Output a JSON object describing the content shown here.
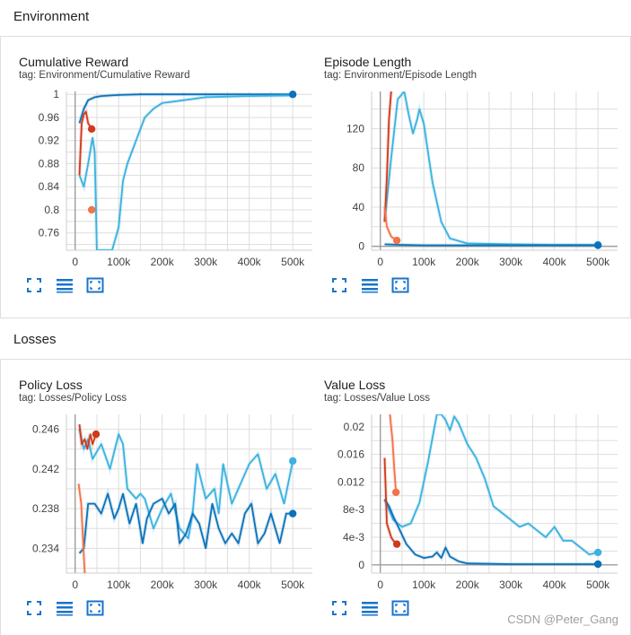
{
  "sections": [
    {
      "title": "Environment"
    },
    {
      "title": "Losses"
    }
  ],
  "colors": {
    "dark_blue": "#0b72b9",
    "light_blue": "#3bb2e0",
    "red": "#cf3b1e",
    "orange": "#f2734a",
    "grid": "#dddddd",
    "axis": "#9e9e9e"
  },
  "watermark": "CSDN @Peter_Gang",
  "chart_data": [
    {
      "id": "cumulative-reward",
      "type": "line",
      "title": "Cumulative Reward",
      "tag": "tag: Environment/Cumulative Reward",
      "xlim": [
        -20000,
        545000
      ],
      "ylim": [
        0.73,
        1.005
      ],
      "xticks": [
        0,
        100000,
        200000,
        300000,
        400000,
        500000
      ],
      "xtick_labels": [
        "0",
        "100k",
        "200k",
        "300k",
        "400k",
        "500k"
      ],
      "yticks": [
        0.76,
        0.8,
        0.84,
        0.88,
        0.92,
        0.96,
        1
      ],
      "ytick_labels": [
        "0.76",
        "0.8",
        "0.84",
        "0.88",
        "0.92",
        "0.96",
        "1"
      ],
      "series": [
        {
          "name": "run-dark-blue",
          "color": "#0b72b9",
          "marker": true,
          "x": [
            10000,
            20000,
            30000,
            45000,
            60000,
            100000,
            150000,
            200000,
            300000,
            400000,
            500000
          ],
          "y": [
            0.95,
            0.975,
            0.99,
            0.995,
            0.997,
            0.999,
            1,
            1,
            1,
            1,
            1
          ]
        },
        {
          "name": "run-light-blue",
          "color": "#3bb2e0",
          "marker": false,
          "x": [
            10000,
            20000,
            30000,
            40000,
            45000,
            50000,
            85000,
            100000,
            110000,
            120000,
            140000,
            160000,
            180000,
            200000,
            250000,
            300000,
            400000,
            500000
          ],
          "y": [
            0.86,
            0.84,
            0.88,
            0.925,
            0.9,
            0.73,
            0.73,
            0.77,
            0.85,
            0.88,
            0.92,
            0.96,
            0.975,
            0.985,
            0.99,
            0.995,
            0.997,
            0.998
          ]
        },
        {
          "name": "run-red",
          "color": "#cf3b1e",
          "marker": true,
          "x": [
            10000,
            15000,
            20000,
            25000,
            30000,
            38000
          ],
          "y": [
            0.86,
            0.95,
            0.965,
            0.97,
            0.95,
            0.94
          ]
        },
        {
          "name": "run-orange",
          "color": "#f2734a",
          "marker": true,
          "x": [
            32000,
            38000
          ],
          "y": [
            0.8,
            0.8
          ]
        }
      ]
    },
    {
      "id": "episode-length",
      "type": "line",
      "title": "Episode Length",
      "tag": "tag: Environment/Episode Length",
      "xlim": [
        -20000,
        545000
      ],
      "ylim": [
        -4,
        158
      ],
      "xticks": [
        0,
        100000,
        200000,
        300000,
        400000,
        500000
      ],
      "xtick_labels": [
        "0",
        "100k",
        "200k",
        "300k",
        "400k",
        "500k"
      ],
      "yticks": [
        0,
        40,
        80,
        120
      ],
      "ytick_labels": [
        "0",
        "40",
        "80",
        "120"
      ],
      "series": [
        {
          "name": "run-light-blue",
          "color": "#3bb2e0",
          "marker": true,
          "x": [
            10000,
            25000,
            40000,
            55000,
            65000,
            75000,
            85000,
            90000,
            100000,
            110000,
            120000,
            140000,
            160000,
            200000,
            300000,
            400000,
            500000
          ],
          "y": [
            25,
            90,
            150,
            158,
            135,
            115,
            130,
            140,
            125,
            95,
            65,
            25,
            8,
            3,
            2,
            1.5,
            1.5
          ]
        },
        {
          "name": "run-dark-blue",
          "color": "#0b72b9",
          "marker": true,
          "x": [
            10000,
            50000,
            100000,
            200000,
            300000,
            400000,
            500000
          ],
          "y": [
            2,
            1.5,
            1,
            1,
            1,
            1,
            1
          ]
        },
        {
          "name": "run-red",
          "color": "#cf3b1e",
          "marker": false,
          "x": [
            10000,
            15000,
            20000,
            25000
          ],
          "y": [
            25,
            70,
            130,
            158
          ]
        },
        {
          "name": "run-orange",
          "color": "#f2734a",
          "marker": true,
          "x": [
            10000,
            15000,
            25000,
            38000
          ],
          "y": [
            40,
            20,
            10,
            6
          ]
        }
      ]
    },
    {
      "id": "policy-loss",
      "type": "line",
      "title": "Policy Loss",
      "tag": "tag: Losses/Policy Loss",
      "xlim": [
        -20000,
        545000
      ],
      "ylim": [
        0.2315,
        0.2475
      ],
      "xticks": [
        0,
        100000,
        200000,
        300000,
        400000,
        500000
      ],
      "xtick_labels": [
        "0",
        "100k",
        "200k",
        "300k",
        "400k",
        "500k"
      ],
      "yticks": [
        0.234,
        0.238,
        0.242,
        0.246
      ],
      "ytick_labels": [
        "0.234",
        "0.238",
        "0.242",
        "0.246"
      ],
      "series": [
        {
          "name": "run-light-blue",
          "color": "#3bb2e0",
          "marker": true,
          "x": [
            10000,
            20000,
            30000,
            40000,
            60000,
            80000,
            100000,
            110000,
            120000,
            140000,
            150000,
            160000,
            180000,
            200000,
            220000,
            240000,
            260000,
            270000,
            280000,
            300000,
            320000,
            330000,
            340000,
            360000,
            380000,
            400000,
            420000,
            440000,
            460000,
            480000,
            500000
          ],
          "y": [
            0.246,
            0.244,
            0.245,
            0.243,
            0.2445,
            0.242,
            0.2455,
            0.2445,
            0.24,
            0.239,
            0.2395,
            0.239,
            0.236,
            0.238,
            0.2395,
            0.236,
            0.235,
            0.2375,
            0.2425,
            0.239,
            0.24,
            0.2375,
            0.2425,
            0.2385,
            0.2405,
            0.2425,
            0.2435,
            0.24,
            0.2415,
            0.2385,
            0.2428
          ]
        },
        {
          "name": "run-dark-blue",
          "color": "#0b72b9",
          "marker": true,
          "x": [
            10000,
            20000,
            30000,
            45000,
            60000,
            75000,
            90000,
            100000,
            110000,
            125000,
            140000,
            155000,
            165000,
            180000,
            200000,
            215000,
            230000,
            240000,
            255000,
            270000,
            285000,
            300000,
            315000,
            330000,
            345000,
            360000,
            375000,
            390000,
            405000,
            420000,
            435000,
            450000,
            470000,
            485000,
            500000
          ],
          "y": [
            0.2335,
            0.234,
            0.2385,
            0.2385,
            0.2375,
            0.2395,
            0.237,
            0.238,
            0.2395,
            0.2365,
            0.2385,
            0.2345,
            0.237,
            0.2385,
            0.239,
            0.2375,
            0.2385,
            0.2345,
            0.2355,
            0.2375,
            0.2365,
            0.234,
            0.2385,
            0.236,
            0.2345,
            0.2355,
            0.2345,
            0.2375,
            0.2385,
            0.2345,
            0.2355,
            0.2375,
            0.2345,
            0.2375,
            0.2375
          ]
        },
        {
          "name": "run-red",
          "color": "#cf3b1e",
          "marker": true,
          "x": [
            10000,
            15000,
            22000,
            28000,
            35000,
            40000,
            48000
          ],
          "y": [
            0.2465,
            0.2445,
            0.245,
            0.244,
            0.2455,
            0.2445,
            0.2455
          ]
        },
        {
          "name": "run-orange",
          "color": "#f2734a",
          "marker": false,
          "x": [
            8000,
            14000,
            18000,
            22000
          ],
          "y": [
            0.2405,
            0.2385,
            0.235,
            0.2315
          ]
        }
      ]
    },
    {
      "id": "value-loss",
      "type": "line",
      "title": "Value Loss",
      "tag": "tag: Losses/Value Loss",
      "xlim": [
        -20000,
        545000
      ],
      "ylim": [
        -0.0012,
        0.0218
      ],
      "xticks": [
        0,
        100000,
        200000,
        300000,
        400000,
        500000
      ],
      "xtick_labels": [
        "0",
        "100k",
        "200k",
        "300k",
        "400k",
        "500k"
      ],
      "yticks": [
        0,
        0.004,
        0.008,
        0.012,
        0.016,
        0.02
      ],
      "ytick_labels": [
        "0",
        "4e-3",
        "8e-3",
        "0.012",
        "0.016",
        "0.02"
      ],
      "series": [
        {
          "name": "run-light-blue",
          "color": "#3bb2e0",
          "marker": true,
          "x": [
            10000,
            30000,
            50000,
            70000,
            90000,
            110000,
            130000,
            140000,
            150000,
            160000,
            170000,
            180000,
            200000,
            220000,
            240000,
            260000,
            280000,
            300000,
            320000,
            340000,
            360000,
            380000,
            400000,
            420000,
            440000,
            460000,
            480000,
            500000
          ],
          "y": [
            0.0095,
            0.0065,
            0.0055,
            0.006,
            0.009,
            0.015,
            0.0218,
            0.0218,
            0.021,
            0.0195,
            0.0215,
            0.0205,
            0.0175,
            0.0155,
            0.0125,
            0.0085,
            0.0075,
            0.0065,
            0.0055,
            0.006,
            0.005,
            0.004,
            0.0055,
            0.0035,
            0.0035,
            0.0025,
            0.0015,
            0.0018
          ]
        },
        {
          "name": "run-dark-blue",
          "color": "#0b72b9",
          "marker": true,
          "x": [
            10000,
            20000,
            30000,
            45000,
            60000,
            80000,
            100000,
            120000,
            130000,
            140000,
            150000,
            160000,
            180000,
            200000,
            300000,
            400000,
            500000
          ],
          "y": [
            0.0095,
            0.0085,
            0.007,
            0.005,
            0.003,
            0.0015,
            0.001,
            0.0012,
            0.0018,
            0.001,
            0.0025,
            0.0012,
            0.0005,
            0.0002,
            0.0001,
            0.0001,
            0.0001
          ]
        },
        {
          "name": "run-red",
          "color": "#cf3b1e",
          "marker": true,
          "x": [
            10000,
            15000,
            20000,
            25000,
            30000,
            38000
          ],
          "y": [
            0.0155,
            0.006,
            0.005,
            0.004,
            0.0035,
            0.003
          ]
        },
        {
          "name": "run-orange",
          "color": "#f2734a",
          "marker": true,
          "x": [
            22000,
            28000,
            32000,
            36000
          ],
          "y": [
            0.0218,
            0.018,
            0.014,
            0.0105
          ]
        }
      ]
    }
  ]
}
